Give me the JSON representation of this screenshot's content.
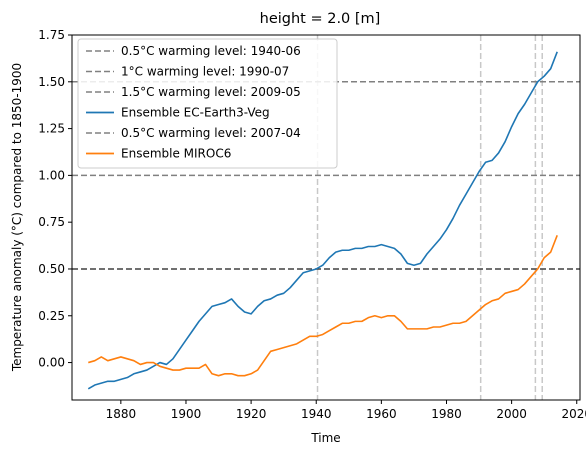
{
  "chart_data": {
    "type": "line",
    "title": "height = 2.0 [m]",
    "xlabel": "Time",
    "ylabel": "Temperature anomaly (°C) compared to 1850-1900",
    "xlim": [
      1865,
      2021
    ],
    "ylim": [
      -0.2,
      1.75
    ],
    "xticks": [
      1880,
      1900,
      1920,
      1940,
      1960,
      1980,
      2000,
      2020
    ],
    "xtick_labels": [
      "1880",
      "1900",
      "1920",
      "1940",
      "1960",
      "1980",
      "2000",
      "2020"
    ],
    "yticks": [
      0.0,
      0.25,
      0.5,
      0.75,
      1.0,
      1.25,
      1.5,
      1.75
    ],
    "ytick_labels": [
      "0.00",
      "0.25",
      "0.50",
      "0.75",
      "1.00",
      "1.25",
      "1.50",
      "1.75"
    ],
    "grid": false,
    "legend_position": "top-left",
    "legend": [
      {
        "label": "0.5°C warming level: 1940-06",
        "style": "dashed",
        "color": "#808080"
      },
      {
        "label": "1°C warming level: 1990-07",
        "style": "dashed",
        "color": "#808080"
      },
      {
        "label": "1.5°C warming level: 2009-05",
        "style": "dashed",
        "color": "#808080"
      },
      {
        "label": " Ensemble EC-Earth3-Veg",
        "style": "solid",
        "color": "#1f77b4"
      },
      {
        "label": "0.5°C warming level: 2007-04",
        "style": "dashed",
        "color": "#808080"
      },
      {
        "label": " Ensemble MIROC6",
        "style": "solid",
        "color": "#ff7f0e"
      }
    ],
    "hlines": [
      {
        "y": 0.5,
        "color": "#404040"
      },
      {
        "y": 1.0,
        "color": "#808080"
      },
      {
        "y": 1.5,
        "color": "#808080"
      }
    ],
    "vlines": [
      {
        "x": 1940.4,
        "color": "#c8c8c8"
      },
      {
        "x": 1990.5,
        "color": "#c8c8c8"
      },
      {
        "x": 2007.3,
        "color": "#c8c8c8"
      },
      {
        "x": 2009.4,
        "color": "#c8c8c8"
      }
    ],
    "series": [
      {
        "name": " Ensemble EC-Earth3-Veg",
        "color": "#1f77b4",
        "points": [
          [
            1870,
            -0.14
          ],
          [
            1872,
            -0.12
          ],
          [
            1874,
            -0.11
          ],
          [
            1876,
            -0.1
          ],
          [
            1878,
            -0.1
          ],
          [
            1880,
            -0.09
          ],
          [
            1882,
            -0.08
          ],
          [
            1884,
            -0.06
          ],
          [
            1886,
            -0.05
          ],
          [
            1888,
            -0.04
          ],
          [
            1890,
            -0.02
          ],
          [
            1892,
            0.0
          ],
          [
            1894,
            -0.01
          ],
          [
            1896,
            0.02
          ],
          [
            1898,
            0.07
          ],
          [
            1900,
            0.12
          ],
          [
            1902,
            0.17
          ],
          [
            1904,
            0.22
          ],
          [
            1906,
            0.26
          ],
          [
            1908,
            0.3
          ],
          [
            1910,
            0.31
          ],
          [
            1912,
            0.32
          ],
          [
            1914,
            0.34
          ],
          [
            1916,
            0.3
          ],
          [
            1918,
            0.27
          ],
          [
            1920,
            0.26
          ],
          [
            1922,
            0.3
          ],
          [
            1924,
            0.33
          ],
          [
            1926,
            0.34
          ],
          [
            1928,
            0.36
          ],
          [
            1930,
            0.37
          ],
          [
            1932,
            0.4
          ],
          [
            1934,
            0.44
          ],
          [
            1936,
            0.48
          ],
          [
            1938,
            0.49
          ],
          [
            1940,
            0.5
          ],
          [
            1942,
            0.52
          ],
          [
            1944,
            0.56
          ],
          [
            1946,
            0.59
          ],
          [
            1948,
            0.6
          ],
          [
            1950,
            0.6
          ],
          [
            1952,
            0.61
          ],
          [
            1954,
            0.61
          ],
          [
            1956,
            0.62
          ],
          [
            1958,
            0.62
          ],
          [
            1960,
            0.63
          ],
          [
            1962,
            0.62
          ],
          [
            1964,
            0.61
          ],
          [
            1966,
            0.58
          ],
          [
            1968,
            0.53
          ],
          [
            1970,
            0.52
          ],
          [
            1972,
            0.53
          ],
          [
            1974,
            0.58
          ],
          [
            1976,
            0.62
          ],
          [
            1978,
            0.66
          ],
          [
            1980,
            0.71
          ],
          [
            1982,
            0.77
          ],
          [
            1984,
            0.84
          ],
          [
            1986,
            0.9
          ],
          [
            1988,
            0.96
          ],
          [
            1990,
            1.02
          ],
          [
            1992,
            1.07
          ],
          [
            1994,
            1.08
          ],
          [
            1996,
            1.12
          ],
          [
            1998,
            1.18
          ],
          [
            2000,
            1.26
          ],
          [
            2002,
            1.33
          ],
          [
            2004,
            1.38
          ],
          [
            2006,
            1.44
          ],
          [
            2008,
            1.5
          ],
          [
            2010,
            1.53
          ],
          [
            2012,
            1.57
          ],
          [
            2014,
            1.66
          ]
        ]
      },
      {
        "name": " Ensemble MIROC6",
        "color": "#ff7f0e",
        "points": [
          [
            1870,
            0.0
          ],
          [
            1872,
            0.01
          ],
          [
            1874,
            0.03
          ],
          [
            1876,
            0.01
          ],
          [
            1878,
            0.02
          ],
          [
            1880,
            0.03
          ],
          [
            1882,
            0.02
          ],
          [
            1884,
            0.01
          ],
          [
            1886,
            -0.01
          ],
          [
            1888,
            0.0
          ],
          [
            1890,
            0.0
          ],
          [
            1892,
            -0.02
          ],
          [
            1894,
            -0.03
          ],
          [
            1896,
            -0.04
          ],
          [
            1898,
            -0.04
          ],
          [
            1900,
            -0.03
          ],
          [
            1902,
            -0.03
          ],
          [
            1904,
            -0.03
          ],
          [
            1906,
            -0.01
          ],
          [
            1908,
            -0.06
          ],
          [
            1910,
            -0.07
          ],
          [
            1912,
            -0.06
          ],
          [
            1914,
            -0.06
          ],
          [
            1916,
            -0.07
          ],
          [
            1918,
            -0.07
          ],
          [
            1920,
            -0.06
          ],
          [
            1922,
            -0.04
          ],
          [
            1924,
            0.01
          ],
          [
            1926,
            0.06
          ],
          [
            1928,
            0.07
          ],
          [
            1930,
            0.08
          ],
          [
            1932,
            0.09
          ],
          [
            1934,
            0.1
          ],
          [
            1936,
            0.12
          ],
          [
            1938,
            0.14
          ],
          [
            1940,
            0.14
          ],
          [
            1942,
            0.15
          ],
          [
            1944,
            0.17
          ],
          [
            1946,
            0.19
          ],
          [
            1948,
            0.21
          ],
          [
            1950,
            0.21
          ],
          [
            1952,
            0.22
          ],
          [
            1954,
            0.22
          ],
          [
            1956,
            0.24
          ],
          [
            1958,
            0.25
          ],
          [
            1960,
            0.24
          ],
          [
            1962,
            0.25
          ],
          [
            1964,
            0.25
          ],
          [
            1966,
            0.22
          ],
          [
            1968,
            0.18
          ],
          [
            1970,
            0.18
          ],
          [
            1972,
            0.18
          ],
          [
            1974,
            0.18
          ],
          [
            1976,
            0.19
          ],
          [
            1978,
            0.19
          ],
          [
            1980,
            0.2
          ],
          [
            1982,
            0.21
          ],
          [
            1984,
            0.21
          ],
          [
            1986,
            0.22
          ],
          [
            1988,
            0.25
          ],
          [
            1990,
            0.28
          ],
          [
            1992,
            0.31
          ],
          [
            1994,
            0.33
          ],
          [
            1996,
            0.34
          ],
          [
            1998,
            0.37
          ],
          [
            2000,
            0.38
          ],
          [
            2002,
            0.39
          ],
          [
            2004,
            0.42
          ],
          [
            2006,
            0.46
          ],
          [
            2008,
            0.5
          ],
          [
            2010,
            0.56
          ],
          [
            2012,
            0.59
          ],
          [
            2014,
            0.68
          ]
        ]
      }
    ]
  }
}
